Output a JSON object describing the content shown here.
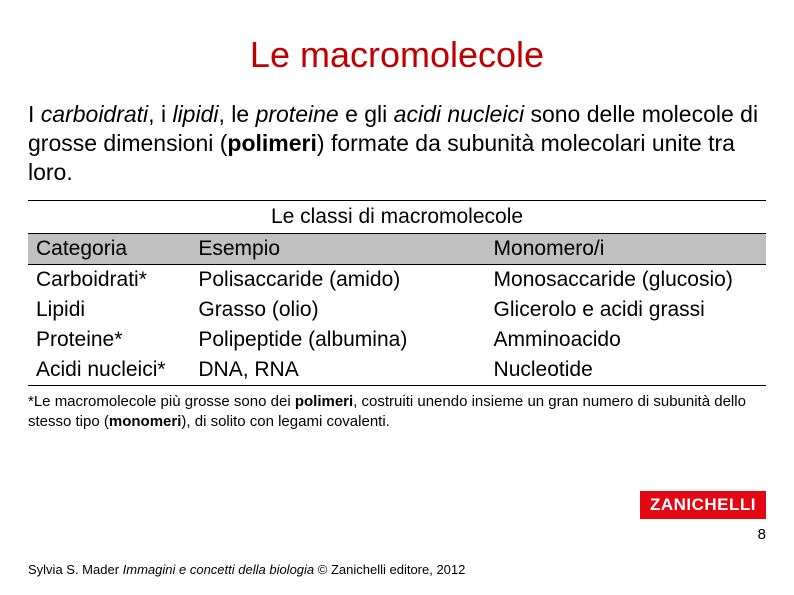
{
  "title": "Le macromolecole",
  "intro": {
    "part1": "I ",
    "italic1": "carboidrati",
    "part2": ", i ",
    "italic2": "lipidi",
    "part3": ", le ",
    "italic3": "proteine",
    "part4": " e gli ",
    "italic4": "acidi nucleici",
    "part5": " sono delle molecole di grosse dimensioni (",
    "bold1": "polimeri",
    "part6": ") formate da subunità molecolari unite tra loro."
  },
  "table": {
    "caption": "Le classi di macromolecole",
    "headers": {
      "c1": "Categoria",
      "c2": "Esempio",
      "c3": "Monomero/i"
    },
    "rows": [
      {
        "c1": "Carboidrati*",
        "c2": "Polisaccaride (amido)",
        "c3": "Monosaccaride (glucosio)"
      },
      {
        "c1": "Lipidi",
        "c2": "Grasso (olio)",
        "c3": "Glicerolo e acidi grassi"
      },
      {
        "c1": "Proteine*",
        "c2": "Polipeptide (albumina)",
        "c3": "Amminoacido"
      },
      {
        "c1": "Acidi nucleici*",
        "c2": "DNA, RNA",
        "c3": "Nucleotide"
      }
    ]
  },
  "footnote": {
    "p1": "*Le macromolecole più grosse sono dei ",
    "b1": "polimeri",
    "p2": ", costruiti unendo insieme un gran numero di subunità dello stesso tipo (",
    "b2": "monomeri",
    "p3": "), di solito con legami covalenti."
  },
  "logo": "ZANICHELLI",
  "page_number": "8",
  "credit": {
    "author": "Sylvia S. Mader ",
    "title_italic": "Immagini e concetti della biologia",
    "rest": " © Zanichelli editore, 2012"
  },
  "colors": {
    "title": "#c00000",
    "logo_bg": "#e30613",
    "header_bg": "#c0c0c0",
    "text": "#000000",
    "bg": "#ffffff"
  }
}
